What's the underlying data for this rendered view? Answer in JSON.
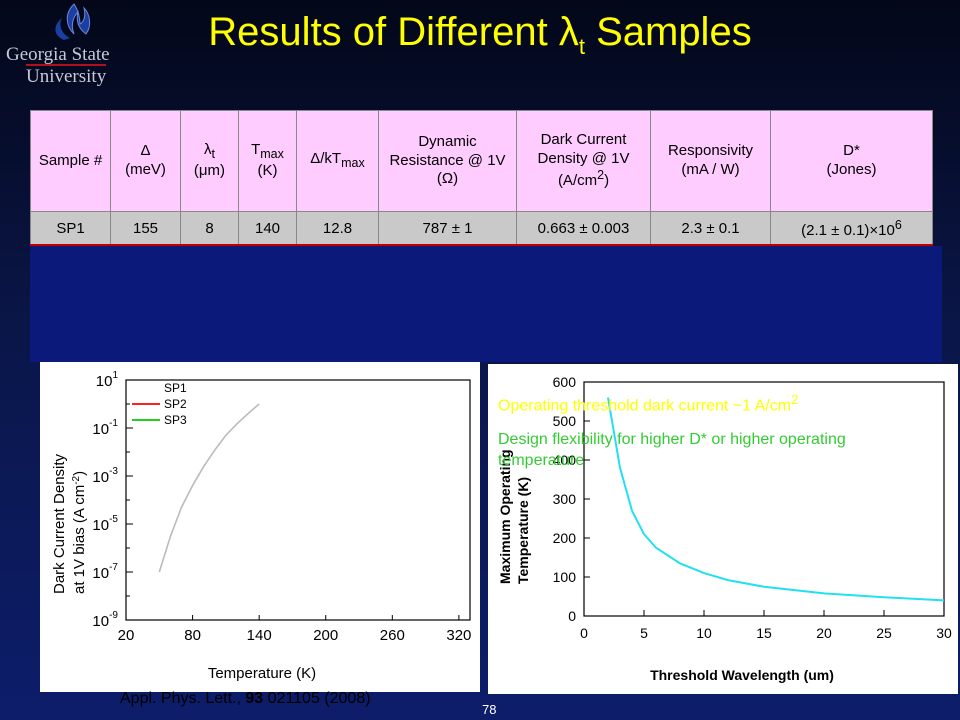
{
  "logo": {
    "line1": "Georgia State",
    "line2": "University"
  },
  "title": {
    "text": "Results of Different λ",
    "sub": "t",
    "suffix": " Samples"
  },
  "table": {
    "headers": [
      {
        "main": "Sample #",
        "sub": "",
        "tail": ""
      },
      {
        "main": "Δ",
        "sub": "",
        "tail": "(meV)"
      },
      {
        "main": "λ",
        "sub": "t",
        "tail": "(μm)"
      },
      {
        "main": "T",
        "sub": "max",
        "tail": "(K)"
      },
      {
        "main": "Δ/kT",
        "sub": "max",
        "tail": ""
      },
      {
        "main": "Dynamic Resistance @ 1V",
        "sub": "",
        "tail": "(Ω)"
      },
      {
        "main": "Dark Current Density @ 1V",
        "sub": "",
        "tail": "(A/cm",
        "sup": "2",
        "after": ")"
      },
      {
        "main": "Responsivity",
        "sub": "",
        "tail": "(mA / W)"
      },
      {
        "main": "D*",
        "sub": "",
        "tail": "(Jones)"
      }
    ],
    "rows": [
      {
        "sample": "SP1",
        "delta": "155",
        "lambda": "8",
        "tmax": "140",
        "ratio": "12.8",
        "resistance": "787 ± 1",
        "dark_current": "0.663 ± 0.003",
        "responsivity": "2.3 ± 0.1",
        "dstar": "(2.1 ± 0.1)×10",
        "dstar_exp": "6"
      }
    ]
  },
  "left_chart": {
    "ylabel_line1": "Dark Current Density",
    "ylabel_line2": "at 1V bias (A cm",
    "ylabel_sup": "-2",
    "ylabel_tail": ")",
    "xlabel": "Temperature (K)",
    "ytick_base": "10",
    "yticks": [
      "1",
      "-1",
      "-3",
      "-5",
      "-7",
      "-9"
    ],
    "xticks": [
      "20",
      "80",
      "140",
      "200",
      "260",
      "320"
    ],
    "legend": [
      "SP1",
      "SP2",
      "SP3"
    ],
    "colors": {
      "SP1": "#ffffff",
      "SP2": "#ff2020",
      "SP3": "#20d020"
    }
  },
  "right_chart": {
    "ylabel_line1": "Maximum Operating",
    "ylabel_line2": "Temperature (K)",
    "xlabel": "Threshold Wavelength (um)",
    "yticks": [
      "0",
      "100",
      "200",
      "300",
      "400",
      "500",
      "600"
    ],
    "xticks": [
      "0",
      "5",
      "10",
      "15",
      "20",
      "25",
      "30"
    ],
    "curve_color": "#22e0f0"
  },
  "chart_data": [
    {
      "type": "line",
      "x": [
        50,
        60,
        70,
        80,
        90,
        100,
        110,
        120,
        130,
        140
      ],
      "series": [
        {
          "name": "SP1",
          "values": [
            1e-07,
            3e-06,
            5e-05,
            0.0004,
            0.0025,
            0.012,
            0.05,
            0.15,
            0.4,
            1.0
          ]
        }
      ],
      "xlabel": "Temperature (K)",
      "ylabel": "Dark Current Density at 1V bias (A cm-2)",
      "xlim": [
        20,
        330
      ],
      "ylim": [
        1e-09,
        10
      ],
      "yscale": "log"
    },
    {
      "type": "line",
      "x": [
        2,
        3,
        4,
        5,
        6,
        8,
        10,
        12,
        15,
        20,
        25,
        30
      ],
      "series": [
        {
          "name": "",
          "values": [
            560,
            380,
            270,
            210,
            175,
            135,
            110,
            92,
            75,
            58,
            48,
            40
          ]
        }
      ],
      "xlabel": "Threshold Wavelength (um)",
      "ylabel": "Maximum Operating Temperature (K)",
      "xlim": [
        0,
        30
      ],
      "ylim": [
        0,
        600
      ]
    }
  ],
  "notes": {
    "note1": "Operating threshold dark current ~1 A/cm",
    "note1_sup": "2",
    "note2": "Design flexibility for higher D* or higher operating temperature"
  },
  "citation": {
    "text": "Appl. Phys. Lett., ",
    "bold": "93",
    "rest": " 021105 (2008)"
  },
  "page_number": "78"
}
